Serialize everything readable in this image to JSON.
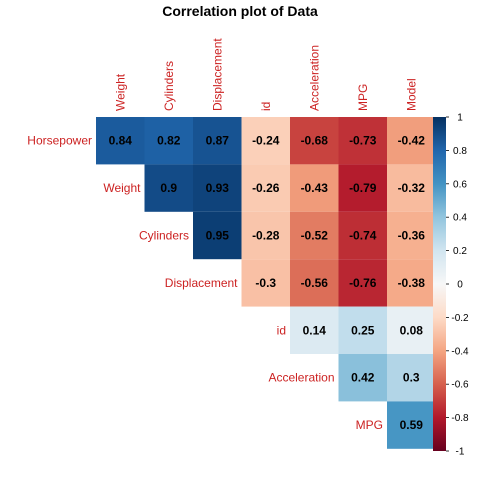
{
  "chart_data": {
    "type": "heatmap",
    "title": "Correlation plot of Data",
    "label_color": "#cc2222",
    "colorscale": [
      [
        -1,
        "#67001f"
      ],
      [
        -0.8,
        "#b2182b"
      ],
      [
        -0.6,
        "#d6604d"
      ],
      [
        -0.4,
        "#f4a582"
      ],
      [
        -0.2,
        "#fddbc7"
      ],
      [
        0,
        "#f7f7f7"
      ],
      [
        0.2,
        "#d1e5f0"
      ],
      [
        0.4,
        "#92c5de"
      ],
      [
        0.6,
        "#4393c3"
      ],
      [
        0.8,
        "#2166ac"
      ],
      [
        1,
        "#053061"
      ]
    ],
    "colorbar_ticks": [
      "1",
      "0.8",
      "0.6",
      "0.4",
      "0.2",
      "0",
      "-0.2",
      "-0.4",
      "-0.6",
      "-0.8",
      "-1"
    ],
    "columns": [
      "Weight",
      "Cylinders",
      "Displacement",
      "id",
      "Acceleration",
      "MPG",
      "Model"
    ],
    "rows": [
      {
        "label": "Horsepower",
        "values": [
          "0.84",
          "0.82",
          "0.87",
          "-0.24",
          "-0.68",
          "-0.73",
          "-0.42"
        ]
      },
      {
        "label": "Weight",
        "values": [
          "0.9",
          "0.93",
          "-0.26",
          "-0.43",
          "-0.79",
          "-0.32"
        ]
      },
      {
        "label": "Cylinders",
        "values": [
          "0.95",
          "-0.28",
          "-0.52",
          "-0.74",
          "-0.36"
        ]
      },
      {
        "label": "Displacement",
        "values": [
          "-0.3",
          "-0.56",
          "-0.76",
          "-0.38"
        ]
      },
      {
        "label": "id",
        "values": [
          "0.14",
          "0.25",
          "0.08"
        ]
      },
      {
        "label": "Acceleration",
        "values": [
          "0.42",
          "0.3"
        ]
      },
      {
        "label": "MPG",
        "values": [
          "0.59"
        ]
      }
    ]
  }
}
